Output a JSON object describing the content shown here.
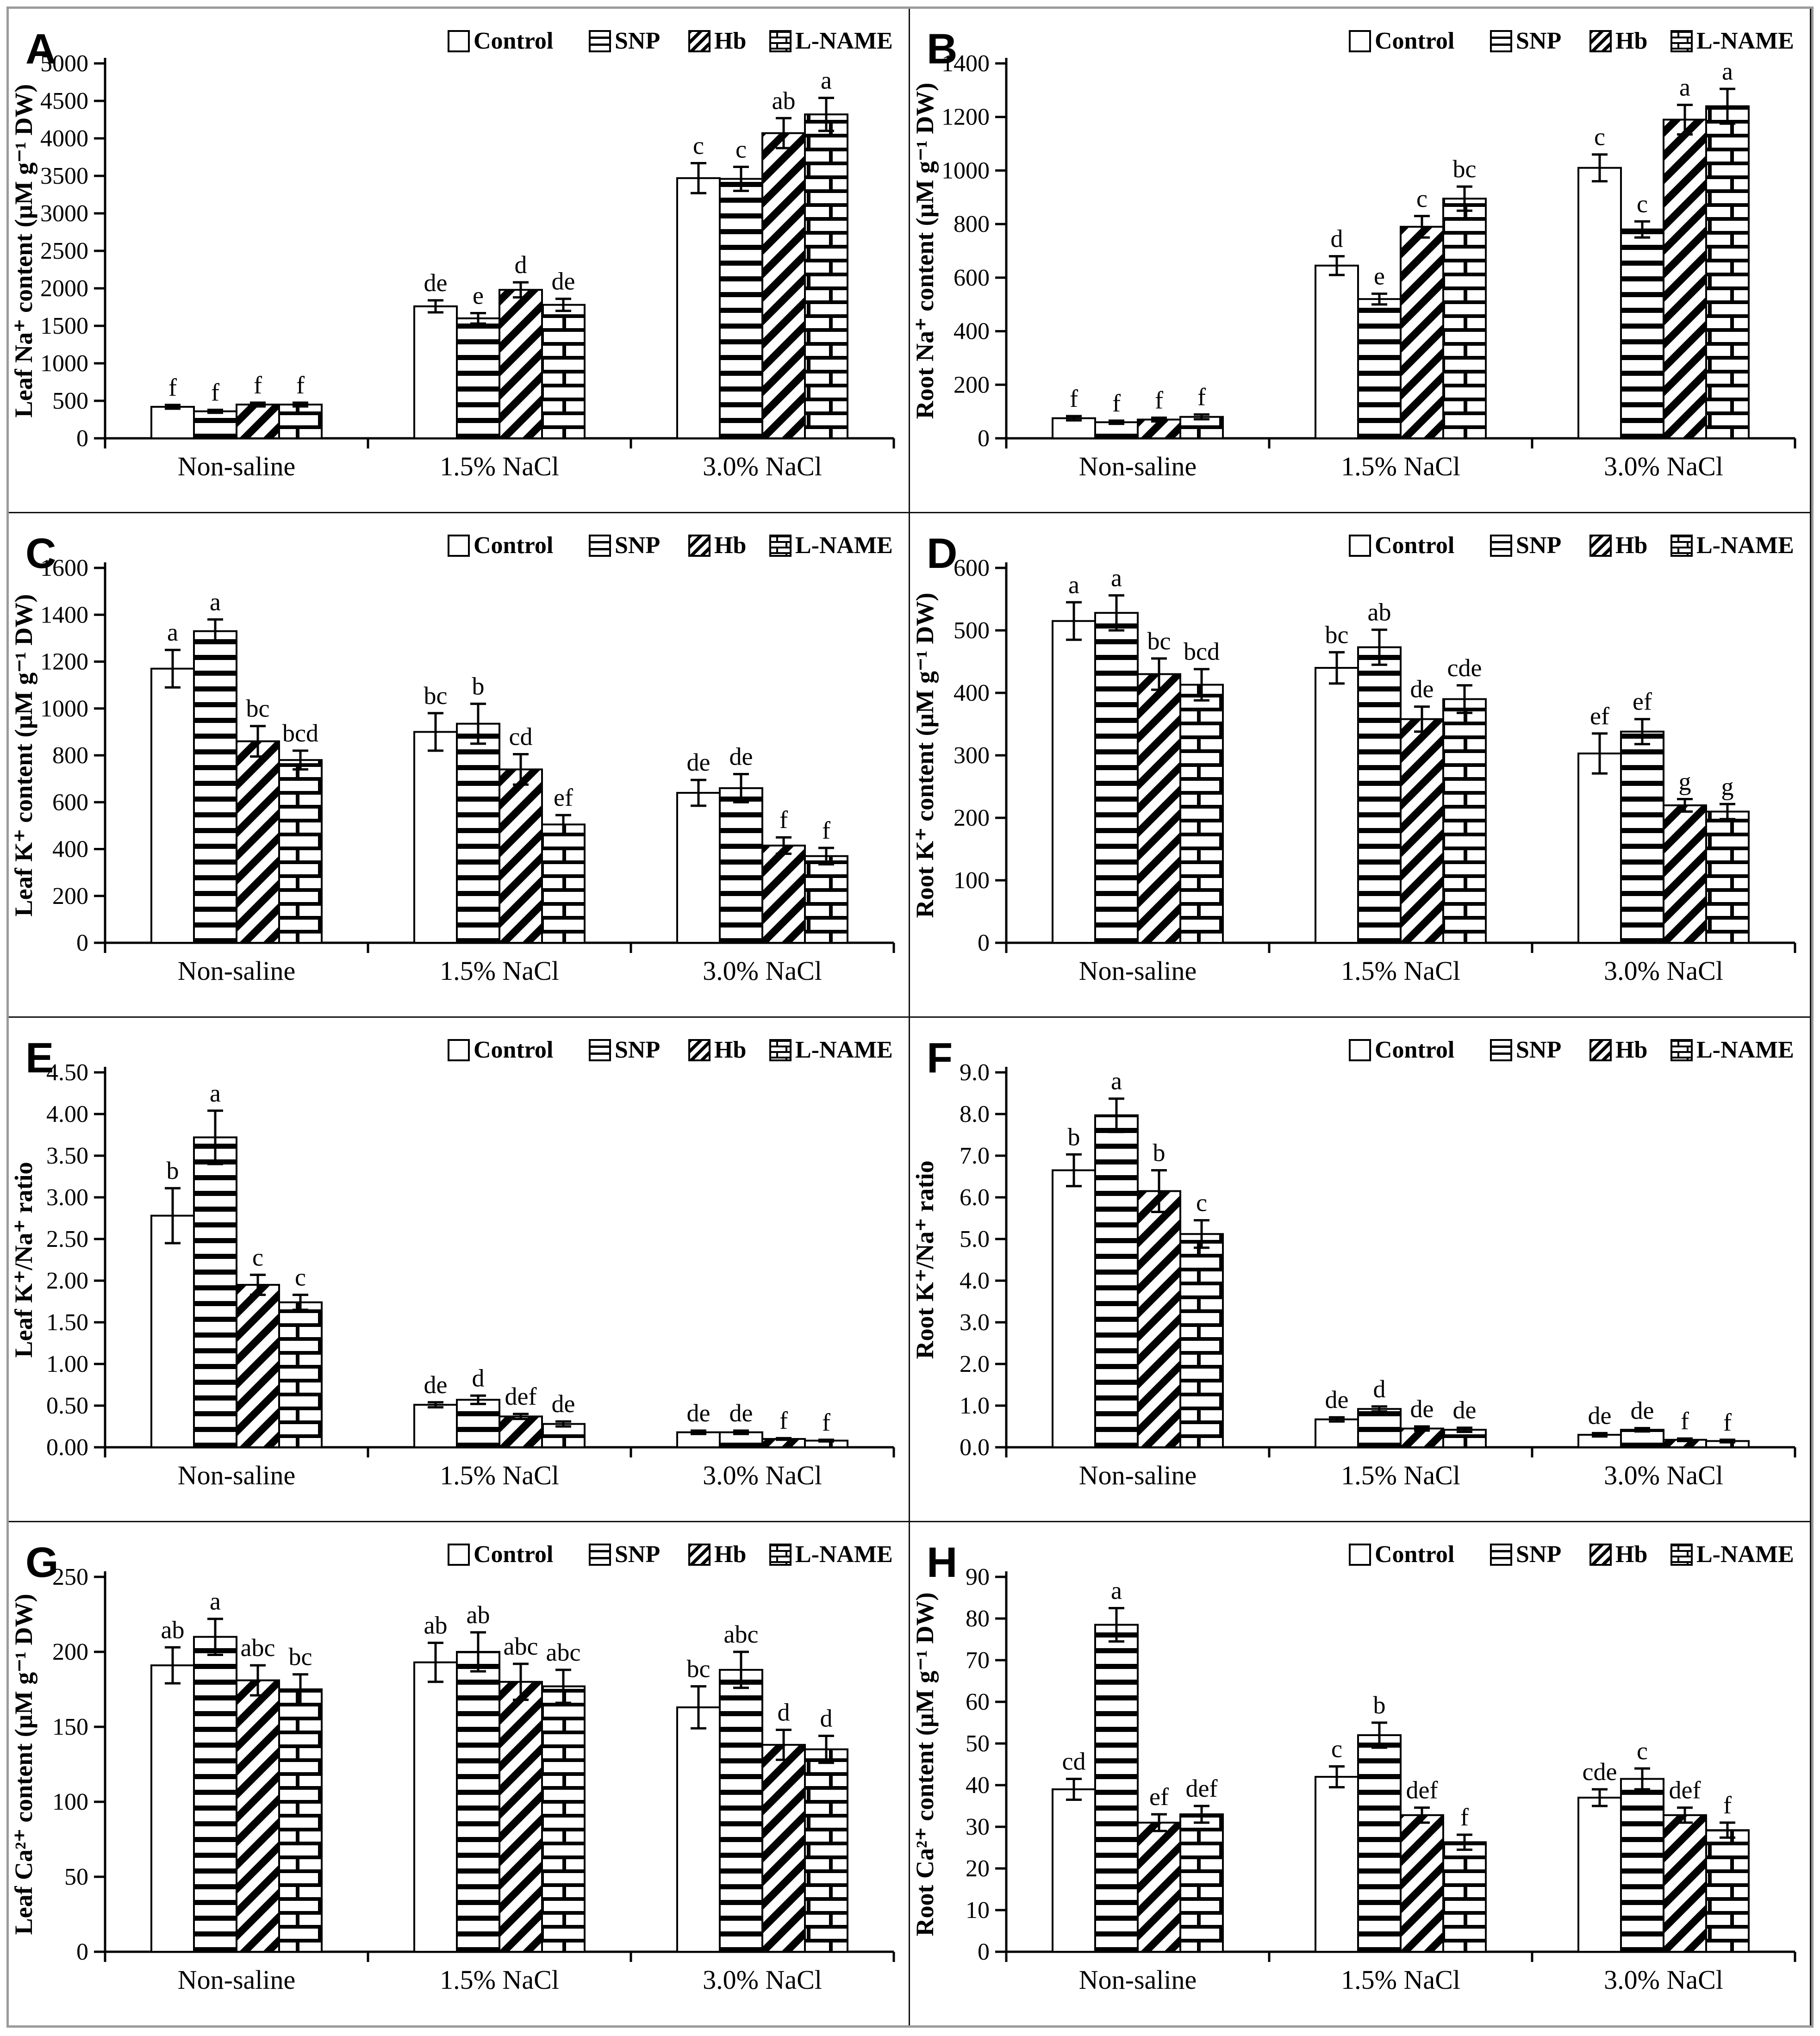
{
  "figure": {
    "description": "Eight-panel bar chart figure of ion contents under salinity treatments",
    "panel_letters": [
      "A",
      "B",
      "C",
      "D",
      "E",
      "F",
      "G",
      "H"
    ],
    "frame_color": "#9a9a9a",
    "bar_stroke_color": "#000000",
    "background_color": "#ffffff"
  },
  "legend": {
    "position": "top-right",
    "items": [
      {
        "key": "control",
        "label": "Control",
        "pattern": "plain"
      },
      {
        "key": "snp",
        "label": "SNP",
        "pattern": "snp"
      },
      {
        "key": "hb",
        "label": "Hb",
        "pattern": "hb"
      },
      {
        "key": "lname",
        "label": "L-NAME",
        "pattern": "lname"
      }
    ]
  },
  "chart_data": [
    {
      "panel": "A",
      "type": "bar",
      "grid": false,
      "legend_position": "top-right",
      "ylabel": "Leaf Na⁺ content (µM g⁻¹ DW)",
      "xlabel": "",
      "ymax": 5000,
      "ytick_labels": [
        "0",
        "500",
        "1000",
        "1500",
        "2000",
        "2500",
        "3000",
        "3500",
        "4000",
        "4500",
        "5000"
      ],
      "categories": [
        "Non-saline",
        "1.5% NaCl",
        "3.0% NaCl"
      ],
      "series": [
        {
          "name": "Control",
          "pattern": "plain",
          "values": [
            420,
            1760,
            3470
          ],
          "errors": [
            25,
            80,
            200
          ],
          "letters": [
            "f",
            "de",
            "c"
          ]
        },
        {
          "name": "SNP",
          "pattern": "snp",
          "values": [
            360,
            1600,
            3460
          ],
          "errors": [
            20,
            70,
            160
          ],
          "letters": [
            "f",
            "e",
            "c"
          ]
        },
        {
          "name": "Hb",
          "pattern": "hb",
          "values": [
            450,
            1980,
            4070
          ],
          "errors": [
            25,
            100,
            200
          ],
          "letters": [
            "f",
            "d",
            "ab"
          ]
        },
        {
          "name": "L-NAME",
          "pattern": "lname",
          "values": [
            450,
            1780,
            4320
          ],
          "errors": [
            25,
            80,
            220
          ],
          "letters": [
            "f",
            "de",
            "a"
          ]
        }
      ]
    },
    {
      "panel": "B",
      "type": "bar",
      "grid": false,
      "legend_position": "top-right",
      "ylabel": "Root Na⁺ content (µM g⁻¹ DW)",
      "xlabel": "",
      "ymax": 1400,
      "ytick_labels": [
        "0",
        "200",
        "400",
        "600",
        "800",
        "1000",
        "1200",
        "1400"
      ],
      "categories": [
        "Non-saline",
        "1.5% NaCl",
        "3.0% NaCl"
      ],
      "series": [
        {
          "name": "Control",
          "pattern": "plain",
          "values": [
            75,
            645,
            1010
          ],
          "errors": [
            8,
            35,
            50
          ],
          "letters": [
            "f",
            "d",
            "c"
          ]
        },
        {
          "name": "SNP",
          "pattern": "snp",
          "values": [
            60,
            520,
            780
          ],
          "errors": [
            6,
            20,
            30
          ],
          "letters": [
            "f",
            "e",
            "c"
          ]
        },
        {
          "name": "Hb",
          "pattern": "hb",
          "values": [
            70,
            790,
            1190
          ],
          "errors": [
            7,
            40,
            55
          ],
          "letters": [
            "f",
            "c",
            "a"
          ]
        },
        {
          "name": "L-NAME",
          "pattern": "lname",
          "values": [
            80,
            895,
            1240
          ],
          "errors": [
            9,
            45,
            65
          ],
          "letters": [
            "f",
            "bc",
            "a"
          ]
        }
      ]
    },
    {
      "panel": "C",
      "type": "bar",
      "grid": false,
      "legend_position": "top-right",
      "ylabel": "Leaf K⁺ content (µM g⁻¹ DW)",
      "xlabel": "",
      "ymax": 1600,
      "ytick_labels": [
        "0",
        "200",
        "400",
        "600",
        "800",
        "1000",
        "1200",
        "1400",
        "1600"
      ],
      "categories": [
        "Non-saline",
        "1.5% NaCl",
        "3.0% NaCl"
      ],
      "series": [
        {
          "name": "Control",
          "pattern": "plain",
          "values": [
            1170,
            900,
            640
          ],
          "errors": [
            80,
            80,
            55
          ],
          "letters": [
            "a",
            "bc",
            "de"
          ]
        },
        {
          "name": "SNP",
          "pattern": "snp",
          "values": [
            1330,
            935,
            660
          ],
          "errors": [
            50,
            85,
            60
          ],
          "letters": [
            "a",
            "b",
            "de"
          ]
        },
        {
          "name": "Hb",
          "pattern": "hb",
          "values": [
            860,
            740,
            415
          ],
          "errors": [
            65,
            65,
            35
          ],
          "letters": [
            "bc",
            "cd",
            "f"
          ]
        },
        {
          "name": "L-NAME",
          "pattern": "lname",
          "values": [
            780,
            505,
            370
          ],
          "errors": [
            40,
            40,
            35
          ],
          "letters": [
            "bcd",
            "ef",
            "f"
          ]
        }
      ]
    },
    {
      "panel": "D",
      "type": "bar",
      "grid": false,
      "legend_position": "top-right",
      "ylabel": "Root K⁺ content (µM g⁻¹ DW)",
      "xlabel": "",
      "ymax": 600,
      "ytick_labels": [
        "0",
        "100",
        "200",
        "300",
        "400",
        "500",
        "600"
      ],
      "categories": [
        "Non-saline",
        "1.5% NaCl",
        "3.0% NaCl"
      ],
      "series": [
        {
          "name": "Control",
          "pattern": "plain",
          "values": [
            515,
            440,
            303
          ],
          "errors": [
            30,
            25,
            32
          ],
          "letters": [
            "a",
            "bc",
            "ef"
          ]
        },
        {
          "name": "SNP",
          "pattern": "snp",
          "values": [
            528,
            473,
            338
          ],
          "errors": [
            28,
            28,
            20
          ],
          "letters": [
            "a",
            "ab",
            "ef"
          ]
        },
        {
          "name": "Hb",
          "pattern": "hb",
          "values": [
            430,
            358,
            220
          ],
          "errors": [
            25,
            20,
            10
          ],
          "letters": [
            "bc",
            "de",
            "g"
          ]
        },
        {
          "name": "L-NAME",
          "pattern": "lname",
          "values": [
            413,
            390,
            210
          ],
          "errors": [
            25,
            22,
            12
          ],
          "letters": [
            "bcd",
            "cde",
            "g"
          ]
        }
      ]
    },
    {
      "panel": "E",
      "type": "bar",
      "grid": false,
      "legend_position": "top-right",
      "ylabel": "Leaf K⁺/Na⁺ ratio",
      "xlabel": "",
      "ymax": 4.5,
      "ytick_labels": [
        "0.00",
        "0.50",
        "1.00",
        "1.50",
        "2.00",
        "2.50",
        "3.00",
        "3.50",
        "4.00",
        "4.50"
      ],
      "categories": [
        "Non-saline",
        "1.5% NaCl",
        "3.0% NaCl"
      ],
      "series": [
        {
          "name": "Control",
          "pattern": "plain",
          "values": [
            2.78,
            0.51,
            0.18
          ],
          "errors": [
            0.33,
            0.03,
            0.02
          ],
          "letters": [
            "b",
            "de",
            "de"
          ]
        },
        {
          "name": "SNP",
          "pattern": "snp",
          "values": [
            3.72,
            0.57,
            0.18
          ],
          "errors": [
            0.32,
            0.05,
            0.02
          ],
          "letters": [
            "a",
            "d",
            "de"
          ]
        },
        {
          "name": "Hb",
          "pattern": "hb",
          "values": [
            1.95,
            0.37,
            0.1
          ],
          "errors": [
            0.12,
            0.03,
            0.01
          ],
          "letters": [
            "c",
            "def",
            "f"
          ]
        },
        {
          "name": "L-NAME",
          "pattern": "lname",
          "values": [
            1.74,
            0.28,
            0.08
          ],
          "errors": [
            0.09,
            0.03,
            0.01
          ],
          "letters": [
            "c",
            "de",
            "f"
          ]
        }
      ]
    },
    {
      "panel": "F",
      "type": "bar",
      "grid": false,
      "legend_position": "top-right",
      "ylabel": "Root K⁺/Na⁺ ratio",
      "xlabel": "",
      "ymax": 9.0,
      "ytick_labels": [
        "0.0",
        "1.0",
        "2.0",
        "3.0",
        "4.0",
        "5.0",
        "6.0",
        "7.0",
        "8.0",
        "9.0"
      ],
      "categories": [
        "Non-saline",
        "1.5% NaCl",
        "3.0% NaCl"
      ],
      "series": [
        {
          "name": "Control",
          "pattern": "plain",
          "values": [
            6.65,
            0.67,
            0.3
          ],
          "errors": [
            0.38,
            0.05,
            0.04
          ],
          "letters": [
            "b",
            "de",
            "de"
          ]
        },
        {
          "name": "SNP",
          "pattern": "snp",
          "values": [
            7.97,
            0.92,
            0.42
          ],
          "errors": [
            0.4,
            0.06,
            0.04
          ],
          "letters": [
            "a",
            "d",
            "de"
          ]
        },
        {
          "name": "Hb",
          "pattern": "hb",
          "values": [
            6.15,
            0.45,
            0.18
          ],
          "errors": [
            0.5,
            0.05,
            0.03
          ],
          "letters": [
            "b",
            "de",
            "f"
          ]
        },
        {
          "name": "L-NAME",
          "pattern": "lname",
          "values": [
            5.12,
            0.42,
            0.15
          ],
          "errors": [
            0.33,
            0.05,
            0.03
          ],
          "letters": [
            "c",
            "de",
            "f"
          ]
        }
      ]
    },
    {
      "panel": "G",
      "type": "bar",
      "grid": false,
      "legend_position": "top-right",
      "ylabel": "Leaf Ca²⁺ content (µM g⁻¹ DW)",
      "xlabel": "",
      "ymax": 250,
      "ytick_labels": [
        "0",
        "50",
        "100",
        "150",
        "200",
        "250"
      ],
      "categories": [
        "Non-saline",
        "1.5% NaCl",
        "3.0% NaCl"
      ],
      "series": [
        {
          "name": "Control",
          "pattern": "plain",
          "values": [
            191,
            193,
            163
          ],
          "errors": [
            12,
            13,
            14
          ],
          "letters": [
            "ab",
            "ab",
            "bc"
          ]
        },
        {
          "name": "SNP",
          "pattern": "snp",
          "values": [
            210,
            200,
            188
          ],
          "errors": [
            12,
            13,
            12
          ],
          "letters": [
            "a",
            "ab",
            "abc"
          ]
        },
        {
          "name": "Hb",
          "pattern": "hb",
          "values": [
            181,
            180,
            138
          ],
          "errors": [
            10,
            12,
            10
          ],
          "letters": [
            "abc",
            "abc",
            "d"
          ]
        },
        {
          "name": "L-NAME",
          "pattern": "lname",
          "values": [
            175,
            177,
            135
          ],
          "errors": [
            10,
            11,
            9
          ],
          "letters": [
            "bc",
            "abc",
            "d"
          ]
        }
      ]
    },
    {
      "panel": "H",
      "type": "bar",
      "grid": false,
      "legend_position": "top-right",
      "ylabel": "Root Ca²⁺ content (µM g⁻¹ DW)",
      "xlabel": "",
      "ymax": 90,
      "ytick_labels": [
        "0",
        "10",
        "20",
        "30",
        "40",
        "50",
        "60",
        "70",
        "80",
        "90"
      ],
      "categories": [
        "Non-saline",
        "1.5% NaCl",
        "3.0% NaCl"
      ],
      "series": [
        {
          "name": "Control",
          "pattern": "plain",
          "values": [
            39,
            42,
            37
          ],
          "errors": [
            2.5,
            2.5,
            2
          ],
          "letters": [
            "cd",
            "c",
            "cde"
          ]
        },
        {
          "name": "SNP",
          "pattern": "snp",
          "values": [
            78.5,
            52,
            41.5
          ],
          "errors": [
            4,
            3,
            2.5
          ],
          "letters": [
            "a",
            "b",
            "c"
          ]
        },
        {
          "name": "Hb",
          "pattern": "hb",
          "values": [
            31,
            32.8,
            32.8
          ],
          "errors": [
            2,
            1.8,
            1.8
          ],
          "letters": [
            "ef",
            "def",
            "def"
          ]
        },
        {
          "name": "L-NAME",
          "pattern": "lname",
          "values": [
            33,
            26.3,
            29.2
          ],
          "errors": [
            2,
            1.8,
            1.8
          ],
          "letters": [
            "def",
            "f",
            "f"
          ]
        }
      ]
    }
  ]
}
